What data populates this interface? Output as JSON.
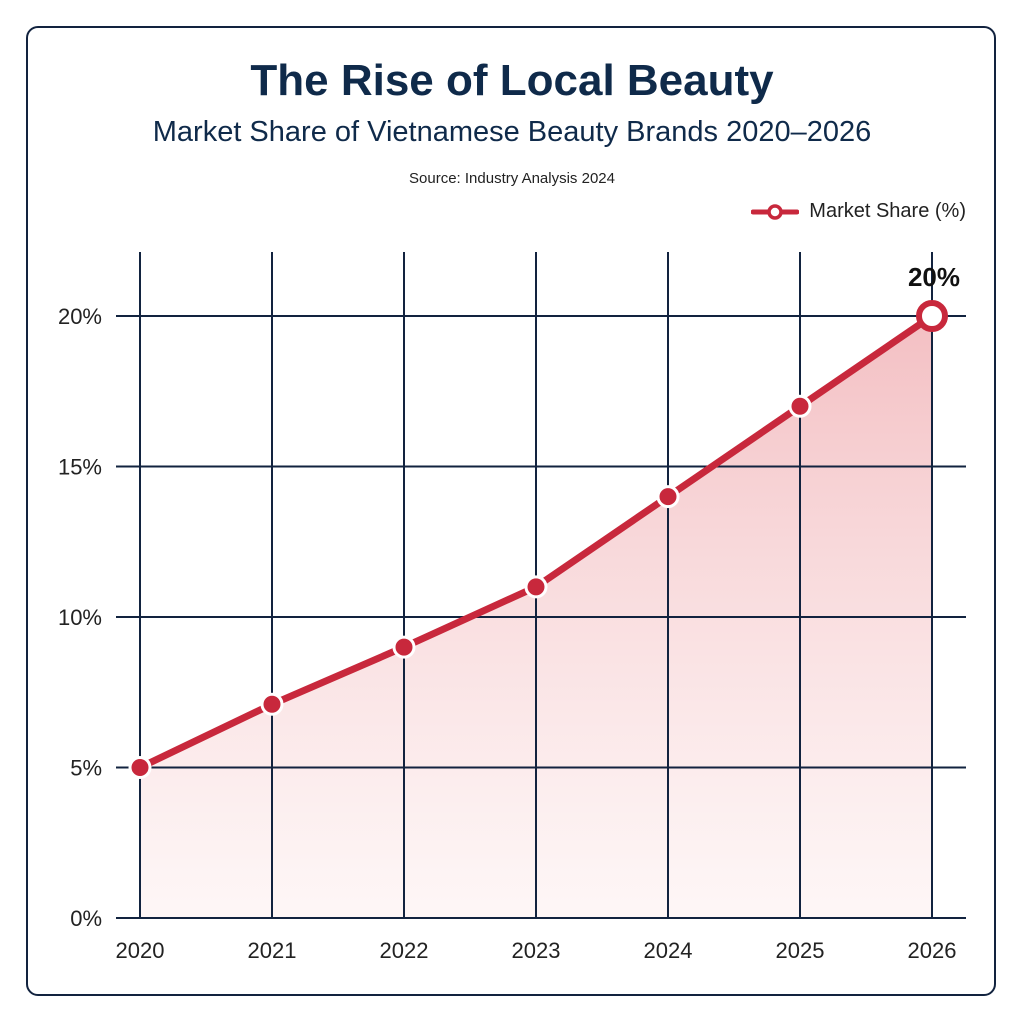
{
  "chart_data": {
    "type": "line",
    "title": "The Rise of Local Beauty",
    "subtitle": "Market Share of Vietnamese Beauty Brands 2020–2026",
    "source": "Source: Industry Analysis 2024",
    "categories": [
      "2020",
      "2021",
      "2022",
      "2023",
      "2024",
      "2025",
      "2026"
    ],
    "series": [
      {
        "name": "Market Share (%)",
        "values": [
          5,
          7.1,
          9,
          11,
          14,
          17,
          20
        ]
      }
    ],
    "ylim": [
      0,
      22
    ],
    "yticks": [
      0,
      5,
      10,
      15,
      20
    ],
    "ytick_labels": [
      "0%",
      "5%",
      "10%",
      "15%",
      "20%"
    ],
    "annotation": "20%",
    "grid": true,
    "area_fill": true,
    "legend": "top-right",
    "colors": {
      "line": "#c8283c",
      "grid": "#12233f",
      "title": "#0f2a4a",
      "fill": "#f2b8bc"
    }
  }
}
